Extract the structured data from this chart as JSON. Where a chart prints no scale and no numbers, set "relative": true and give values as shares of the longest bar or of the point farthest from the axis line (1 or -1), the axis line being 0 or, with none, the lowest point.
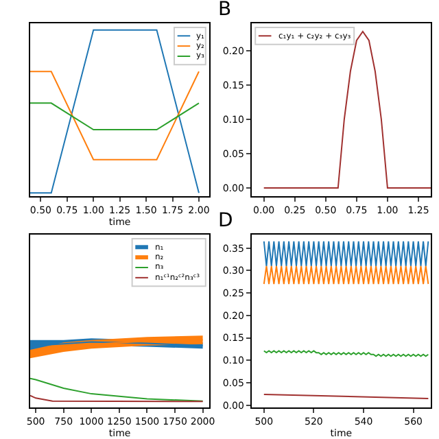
{
  "chart_data": [
    {
      "type": "line",
      "relative": true,
      "xlabel": "time",
      "xlim": [
        0.4,
        2.1
      ],
      "xticks": [
        {
          "value": 0.5,
          "label": "0.50"
        },
        {
          "value": 0.75,
          "label": "0.75"
        },
        {
          "value": 1.0,
          "label": "1.00"
        },
        {
          "value": 1.25,
          "label": "1.25"
        },
        {
          "value": 1.5,
          "label": "1.50"
        },
        {
          "value": 1.75,
          "label": "1.75"
        },
        {
          "value": 2.0,
          "label": "2.00"
        }
      ],
      "legend": "top right",
      "x": [
        0.4,
        0.6,
        1.0,
        1.6,
        2.0
      ],
      "series": [
        {
          "name": "y₁",
          "color": "#1f77b4",
          "values": [
            0.02,
            0.02,
            1,
            1,
            0.02
          ]
        },
        {
          "name": "y₂",
          "color": "#ff7f0e",
          "values": [
            0.75,
            0.75,
            0.22,
            0.22,
            0.75
          ]
        },
        {
          "name": "y₃",
          "color": "#2ca02c",
          "values": [
            0.56,
            0.56,
            0.4,
            0.4,
            0.56
          ]
        }
      ]
    },
    {
      "type": "line",
      "xlim": [
        -0.1,
        1.35
      ],
      "xticks": [
        {
          "value": 0,
          "label": "0.00"
        },
        {
          "value": 0.25,
          "label": "0.25"
        },
        {
          "value": 0.5,
          "label": "0.50"
        },
        {
          "value": 0.75,
          "label": "0.75"
        },
        {
          "value": 1.0,
          "label": "1.00"
        },
        {
          "value": 1.25,
          "label": "1.25"
        }
      ],
      "ylim": [
        -0.012,
        0.24
      ],
      "yticks": [
        {
          "value": 0,
          "label": "0.00"
        },
        {
          "value": 0.05,
          "label": "0.05"
        },
        {
          "value": 0.1,
          "label": "0.10"
        },
        {
          "value": 0.15,
          "label": "0.15"
        },
        {
          "value": 0.2,
          "label": "0.20"
        }
      ],
      "legend": "top left",
      "annotations": [
        "B"
      ],
      "x": [
        0,
        0.6,
        0.65,
        0.7,
        0.75,
        0.8,
        0.85,
        0.9,
        0.95,
        1.0,
        1.35
      ],
      "series": [
        {
          "name": "c₁y₁ + c₂y₂ + c₃y₃",
          "color": "#a0302f",
          "values": [
            0,
            0,
            0.1,
            0.17,
            0.215,
            0.228,
            0.215,
            0.17,
            0.1,
            0,
            0
          ]
        }
      ]
    },
    {
      "type": "line",
      "relative": true,
      "xlabel": "time",
      "xlim": [
        450,
        2060
      ],
      "xticks": [
        500,
        750,
        1000,
        1250,
        1500,
        1750,
        2000
      ],
      "legend": "top right",
      "series": [
        {
          "name": "n₁",
          "color": "#1f77b4",
          "x": [
            450,
            750,
            1000,
            1500,
            2000
          ],
          "values": [
            0.911,
            0.943,
            0.971,
            0.949,
            0.917
          ],
          "lower": [
            0.823,
            0.885,
            0.917,
            0.898,
            0.872
          ],
          "upper": [
            0.999,
            0.999,
            1.024,
            0.999,
            0.962
          ]
        },
        {
          "name": "n₂",
          "color": "#ff7f0e",
          "x": [
            450,
            750,
            1000,
            1500,
            2000
          ],
          "values": [
            0.792,
            0.893,
            0.936,
            0.981,
            1.0
          ],
          "lower": [
            0.728,
            0.823,
            0.872,
            0.917,
            0.936
          ],
          "upper": [
            0.854,
            0.962,
            0.999,
            1.044,
            1.063
          ]
        },
        {
          "name": "n₃",
          "color": "#2ca02c",
          "x": [
            450,
            500,
            750,
            1000,
            1500,
            2000
          ],
          "values": [
            0.43,
            0.411,
            0.285,
            0.202,
            0.126,
            0.095
          ]
        },
        {
          "name": "n₁ᶜ¹n₂ᶜ²n₃ᶜ³",
          "color": "#a0302f",
          "x": [
            450,
            500,
            650,
            2000
          ],
          "values": [
            0.177,
            0.139,
            0.095,
            0.088
          ]
        }
      ]
    },
    {
      "type": "line",
      "xlabel": "time",
      "xlim": [
        495,
        567
      ],
      "xticks": [
        500,
        520,
        540,
        560
      ],
      "ylim": [
        -0.005,
        0.38
      ],
      "yticks": [
        {
          "value": 0,
          "label": "0.00"
        },
        {
          "value": 0.05,
          "label": "0.05"
        },
        {
          "value": 0.1,
          "label": "0.10"
        },
        {
          "value": 0.15,
          "label": "0.15"
        },
        {
          "value": 0.2,
          "label": "0.20"
        },
        {
          "value": 0.25,
          "label": "0.25"
        },
        {
          "value": 0.3,
          "label": "0.30"
        },
        {
          "value": 0.35,
          "label": "0.35"
        }
      ],
      "annotations": [
        "D"
      ],
      "x": [
        500,
        501,
        502,
        503,
        504,
        505,
        506,
        507,
        508,
        509,
        510,
        511,
        512,
        513,
        514,
        515,
        516,
        517,
        518,
        519,
        520,
        521,
        522,
        523,
        524,
        525,
        526,
        527,
        528,
        529,
        530,
        531,
        532,
        533,
        534,
        535,
        536,
        537,
        538,
        539,
        540,
        541,
        542,
        543,
        544,
        545,
        546,
        547,
        548,
        549,
        550,
        551,
        552,
        553,
        554,
        555,
        556,
        557,
        558,
        559,
        560,
        561,
        562,
        563,
        564,
        565,
        566
      ],
      "series": [
        {
          "color": "#1f77b4",
          "values": [
            0.365,
            0.31,
            0.365,
            0.31,
            0.365,
            0.31,
            0.365,
            0.31,
            0.365,
            0.31,
            0.365,
            0.31,
            0.365,
            0.31,
            0.365,
            0.31,
            0.365,
            0.31,
            0.365,
            0.31,
            0.365,
            0.31,
            0.365,
            0.31,
            0.365,
            0.31,
            0.365,
            0.31,
            0.365,
            0.31,
            0.365,
            0.31,
            0.365,
            0.31,
            0.365,
            0.31,
            0.365,
            0.31,
            0.365,
            0.31,
            0.365,
            0.31,
            0.365,
            0.31,
            0.365,
            0.31,
            0.365,
            0.31,
            0.365,
            0.31,
            0.365,
            0.31,
            0.365,
            0.31,
            0.365,
            0.31,
            0.365,
            0.31,
            0.365,
            0.31,
            0.365,
            0.31,
            0.365,
            0.31,
            0.365,
            0.31,
            0.365
          ]
        },
        {
          "color": "#ff7f0e",
          "values": [
            0.27,
            0.31,
            0.27,
            0.31,
            0.27,
            0.31,
            0.27,
            0.31,
            0.27,
            0.31,
            0.27,
            0.31,
            0.27,
            0.31,
            0.27,
            0.31,
            0.27,
            0.31,
            0.27,
            0.31,
            0.27,
            0.31,
            0.27,
            0.31,
            0.27,
            0.31,
            0.27,
            0.31,
            0.27,
            0.31,
            0.27,
            0.31,
            0.27,
            0.31,
            0.27,
            0.31,
            0.27,
            0.31,
            0.27,
            0.31,
            0.27,
            0.31,
            0.27,
            0.31,
            0.27,
            0.31,
            0.27,
            0.31,
            0.27,
            0.31,
            0.27,
            0.31,
            0.27,
            0.31,
            0.27,
            0.31,
            0.27,
            0.31,
            0.27,
            0.31,
            0.27,
            0.31,
            0.27,
            0.31,
            0.27,
            0.31,
            0.27
          ]
        },
        {
          "color": "#2ca02c",
          "values": [
            0.121,
            0.117,
            0.121,
            0.117,
            0.121,
            0.117,
            0.121,
            0.117,
            0.121,
            0.117,
            0.121,
            0.117,
            0.121,
            0.117,
            0.121,
            0.117,
            0.121,
            0.117,
            0.121,
            0.117,
            0.121,
            0.117,
            0.117,
            0.113,
            0.117,
            0.113,
            0.117,
            0.113,
            0.117,
            0.113,
            0.117,
            0.113,
            0.117,
            0.113,
            0.117,
            0.113,
            0.117,
            0.113,
            0.117,
            0.113,
            0.117,
            0.113,
            0.117,
            0.113,
            0.113,
            0.109,
            0.113,
            0.109,
            0.113,
            0.109,
            0.113,
            0.109,
            0.113,
            0.109,
            0.113,
            0.109,
            0.113,
            0.109,
            0.113,
            0.109,
            0.113,
            0.109,
            0.113,
            0.109,
            0.113,
            0.109,
            0.113
          ]
        },
        {
          "color": "#a0302f",
          "x": [
            500,
            566
          ],
          "values": [
            0.024,
            0.015
          ]
        }
      ]
    }
  ]
}
